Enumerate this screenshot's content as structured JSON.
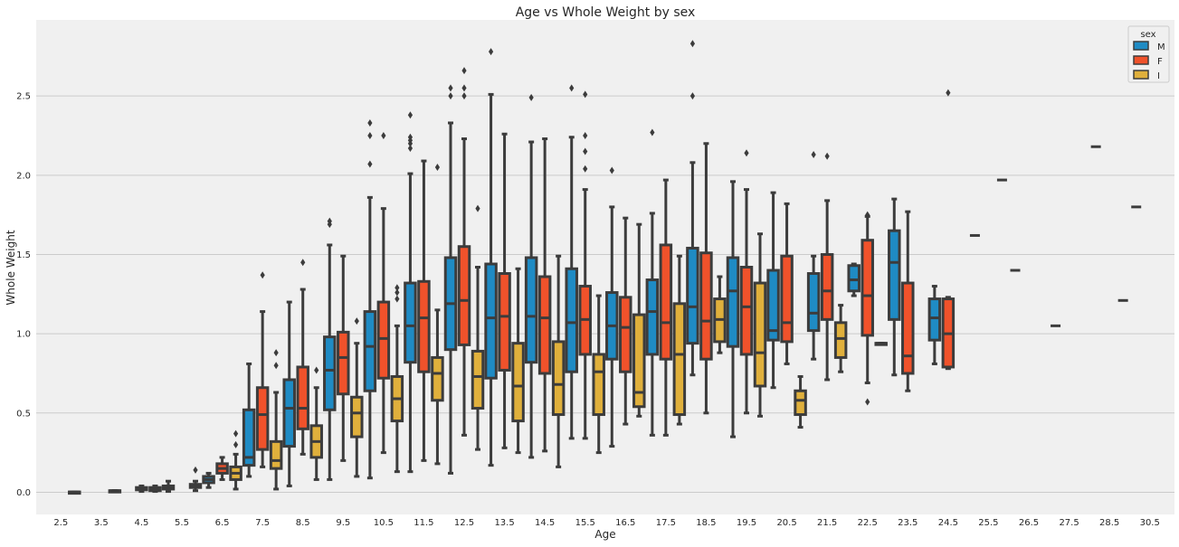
{
  "chart_data": {
    "type": "box",
    "title": "Age vs Whole Weight by sex",
    "xlabel": "Age",
    "ylabel": "Whole Weight",
    "ylim": [
      -0.14,
      2.98
    ],
    "yticks": [
      "0.0",
      "0.5",
      "1.0",
      "1.5",
      "2.0",
      "2.5"
    ],
    "grid": true,
    "legend": {
      "title": "sex",
      "position": "top-right",
      "entries": [
        "M",
        "F",
        "I"
      ]
    },
    "colors": {
      "M": "#1f8bc4",
      "F": "#f0522b",
      "I": "#e0b03c",
      "edge": "#3c3c3c",
      "background": "#f0f0f0",
      "grid": "#cbcbcb"
    },
    "categories": [
      "2.5",
      "3.5",
      "4.5",
      "5.5",
      "6.5",
      "7.5",
      "8.5",
      "9.5",
      "10.5",
      "11.5",
      "12.5",
      "13.5",
      "14.5",
      "15.5",
      "16.5",
      "17.5",
      "18.5",
      "19.5",
      "20.5",
      "21.5",
      "22.5",
      "23.5",
      "24.5",
      "25.5",
      "26.5",
      "27.5",
      "28.5",
      "30.5"
    ],
    "series": [
      {
        "name": "M",
        "boxes": [
          null,
          null,
          null,
          [
            0.005,
            0.02,
            0.03,
            0.04,
            0.07,
            []
          ],
          [
            0.03,
            0.06,
            0.08,
            0.1,
            0.12,
            []
          ],
          [
            0.1,
            0.17,
            0.22,
            0.52,
            0.81,
            []
          ],
          [
            0.04,
            0.29,
            0.53,
            0.71,
            1.2,
            []
          ],
          [
            0.08,
            0.52,
            0.77,
            0.98,
            1.56,
            [
              1.69,
              1.71
            ]
          ],
          [
            0.09,
            0.64,
            0.92,
            1.14,
            1.86,
            [
              2.07,
              2.25,
              2.33
            ]
          ],
          [
            0.13,
            0.82,
            1.05,
            1.32,
            2.01,
            [
              2.17,
              2.2,
              2.22,
              2.24,
              2.38
            ]
          ],
          [
            0.12,
            0.9,
            1.19,
            1.48,
            2.33,
            [
              2.5,
              2.55
            ]
          ],
          [
            0.17,
            0.72,
            1.1,
            1.44,
            2.51,
            [
              2.78
            ]
          ],
          [
            0.22,
            0.82,
            1.11,
            1.48,
            2.21,
            [
              2.49
            ]
          ],
          [
            0.34,
            0.76,
            1.07,
            1.41,
            2.24,
            [
              2.55
            ]
          ],
          [
            0.29,
            0.84,
            1.05,
            1.26,
            1.8,
            [
              2.03
            ]
          ],
          [
            0.36,
            0.87,
            1.14,
            1.34,
            1.76,
            [
              2.27
            ]
          ],
          [
            0.74,
            0.94,
            1.17,
            1.54,
            2.08,
            [
              2.5,
              2.83
            ]
          ],
          [
            0.35,
            0.92,
            1.27,
            1.48,
            1.96,
            []
          ],
          [
            0.66,
            0.96,
            1.02,
            1.4,
            1.89,
            []
          ],
          [
            0.84,
            1.02,
            1.13,
            1.38,
            1.49,
            [
              2.13
            ]
          ],
          [
            1.24,
            1.27,
            1.34,
            1.43,
            1.44,
            []
          ],
          [
            0.74,
            1.09,
            1.45,
            1.65,
            1.85,
            []
          ],
          [
            0.81,
            0.96,
            1.1,
            1.22,
            1.3,
            []
          ],
          null,
          null,
          null,
          null,
          null
        ]
      },
      {
        "name": "F",
        "boxes": [
          null,
          null,
          [
            0.005,
            0.015,
            0.02,
            0.03,
            0.04,
            []
          ],
          null,
          [
            0.08,
            0.12,
            0.15,
            0.18,
            0.22,
            []
          ],
          [
            0.16,
            0.27,
            0.49,
            0.66,
            1.14,
            [
              1.37
            ]
          ],
          [
            0.24,
            0.4,
            0.53,
            0.79,
            1.28,
            [
              1.45
            ]
          ],
          [
            0.2,
            0.62,
            0.85,
            1.01,
            1.49,
            []
          ],
          [
            0.25,
            0.72,
            0.97,
            1.2,
            1.79,
            [
              2.25
            ]
          ],
          [
            0.2,
            0.76,
            1.1,
            1.33,
            2.09,
            []
          ],
          [
            0.36,
            0.93,
            1.21,
            1.55,
            2.23,
            [
              2.5,
              2.55,
              2.66
            ]
          ],
          [
            0.28,
            0.77,
            1.11,
            1.38,
            2.26,
            []
          ],
          [
            0.26,
            0.75,
            1.1,
            1.36,
            2.23,
            []
          ],
          [
            0.34,
            0.87,
            1.09,
            1.3,
            1.91,
            [
              2.04,
              2.15,
              2.25,
              2.51
            ]
          ],
          [
            0.43,
            0.76,
            1.04,
            1.23,
            1.73,
            []
          ],
          [
            0.36,
            0.84,
            1.07,
            1.56,
            1.97,
            []
          ],
          [
            0.5,
            0.84,
            1.08,
            1.51,
            2.2,
            []
          ],
          [
            0.5,
            0.87,
            1.17,
            1.42,
            1.91,
            [
              2.14
            ]
          ],
          [
            0.81,
            0.95,
            1.07,
            1.49,
            1.82,
            []
          ],
          [
            0.71,
            1.09,
            1.27,
            1.5,
            1.84,
            [
              2.12
            ]
          ],
          [
            0.69,
            0.99,
            1.24,
            1.59,
            1.74,
            [
              0.57,
              1.75
            ]
          ],
          [
            0.64,
            0.75,
            0.86,
            1.32,
            1.77,
            []
          ],
          [
            0.78,
            0.79,
            1.0,
            1.22,
            1.23,
            [
              2.52
            ]
          ],
          null,
          null,
          null,
          null,
          null
        ]
      },
      {
        "name": "I",
        "boxes": [
          [
            0.002,
            0.002,
            0.002,
            0.002,
            0.002,
            []
          ],
          [
            0.01,
            0.01,
            0.01,
            0.01,
            0.01,
            []
          ],
          [
            0.005,
            0.01,
            0.02,
            0.03,
            0.04,
            []
          ],
          [
            0.01,
            0.03,
            0.04,
            0.05,
            0.07,
            [
              0.14
            ]
          ],
          [
            0.02,
            0.08,
            0.12,
            0.16,
            0.24,
            [
              0.3,
              0.37
            ]
          ],
          [
            0.02,
            0.15,
            0.2,
            0.32,
            0.63,
            [
              0.8,
              0.88
            ]
          ],
          [
            0.08,
            0.22,
            0.32,
            0.42,
            0.66,
            [
              0.77
            ]
          ],
          [
            0.1,
            0.35,
            0.5,
            0.6,
            0.94,
            [
              1.08
            ]
          ],
          [
            0.13,
            0.45,
            0.59,
            0.73,
            1.05,
            [
              1.22,
              1.26,
              1.29
            ]
          ],
          [
            0.18,
            0.58,
            0.75,
            0.85,
            1.15,
            [
              2.05
            ]
          ],
          [
            0.27,
            0.53,
            0.73,
            0.89,
            1.42,
            [
              1.79
            ]
          ],
          [
            0.25,
            0.45,
            0.67,
            0.94,
            1.41,
            []
          ],
          [
            0.16,
            0.49,
            0.68,
            0.95,
            1.49,
            []
          ],
          [
            0.25,
            0.49,
            0.76,
            0.87,
            1.24,
            []
          ],
          [
            0.48,
            0.54,
            0.63,
            1.12,
            1.69,
            []
          ],
          [
            0.43,
            0.49,
            0.87,
            1.19,
            1.49,
            []
          ],
          [
            0.88,
            0.95,
            1.09,
            1.22,
            1.36,
            []
          ],
          [
            0.48,
            0.67,
            0.88,
            1.32,
            1.63,
            []
          ],
          [
            0.41,
            0.49,
            0.58,
            0.64,
            0.73,
            []
          ],
          [
            0.76,
            0.85,
            0.97,
            1.07,
            1.18,
            []
          ],
          [
            0.94,
            0.94,
            0.94,
            0.94,
            0.94,
            []
          ],
          null,
          null,
          null,
          null,
          null,
          null,
          null
        ]
      }
    ],
    "single_values": [
      {
        "category": "25.5",
        "value": 1.62
      },
      {
        "category": "25.5",
        "value": 1.97,
        "offset": 1
      },
      {
        "category": "26.5",
        "value": 1.4
      },
      {
        "category": "27.5",
        "value": 1.05
      },
      {
        "category": "28.5",
        "value": 2.18
      },
      {
        "category": "28.5",
        "value": 1.21,
        "offset": 1
      },
      {
        "category": "30.5",
        "value": 1.8
      }
    ]
  }
}
